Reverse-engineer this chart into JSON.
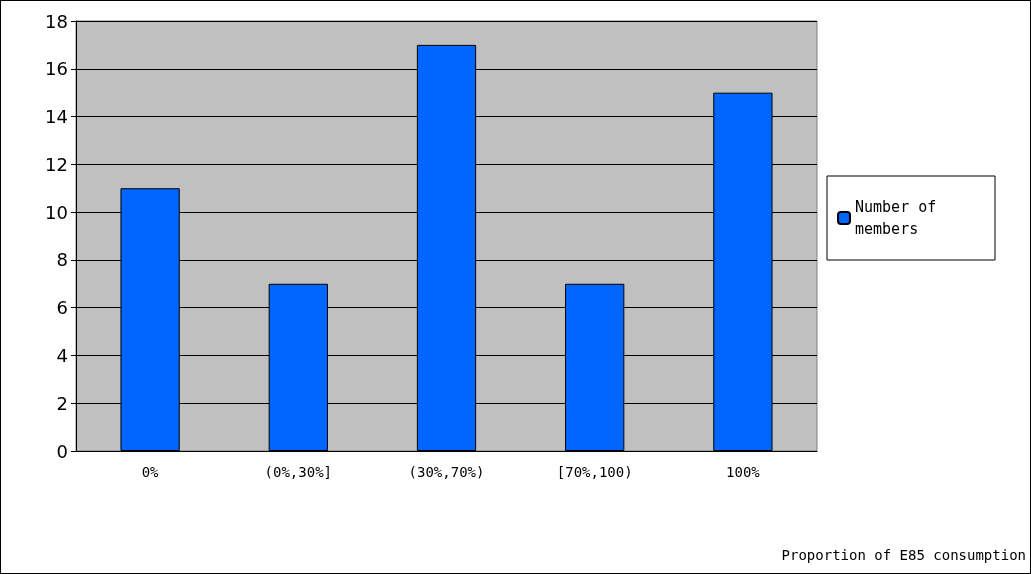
{
  "chart_data": {
    "type": "bar",
    "xlabel": "Proportion of E85 consumption",
    "categories": [
      "0%",
      "(0%,30%]",
      "(30%,70%)",
      "[70%,100)",
      "100%"
    ],
    "series": [
      {
        "name": "Number of members",
        "color": "#0066ff",
        "values": [
          11,
          7,
          17,
          7,
          15
        ]
      }
    ],
    "ylim": [
      0,
      18
    ],
    "yticks": [
      0,
      2,
      4,
      6,
      8,
      10,
      12,
      14,
      16,
      18
    ],
    "grid": "y",
    "legend": "right"
  }
}
